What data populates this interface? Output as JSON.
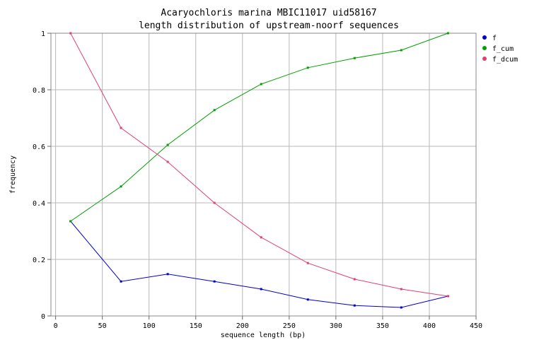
{
  "chart_data": {
    "type": "line",
    "title": "Acaryochloris marina MBIC11017 uid58167",
    "subtitle": "length distribution of upstream-noorf sequences",
    "xlabel": "sequence length (bp)",
    "ylabel": "frequency",
    "xlim": [
      -5,
      450
    ],
    "ylim": [
      0,
      1
    ],
    "x_ticks": [
      "0",
      "50",
      "100",
      "150",
      "200",
      "250",
      "300",
      "350",
      "400",
      "450"
    ],
    "y_ticks": [
      "0",
      "0.2",
      "0.4",
      "0.6",
      "0.8",
      "1"
    ],
    "grid": true,
    "legend_position": "top-right",
    "x": [
      16,
      70,
      120,
      170,
      220,
      270,
      320,
      370,
      420
    ],
    "series": [
      {
        "name": "f",
        "color": "#0000cc",
        "values": [
          0.335,
          0.122,
          0.148,
          0.122,
          0.095,
          0.058,
          0.037,
          0.03,
          0.07
        ]
      },
      {
        "name": "f_cum",
        "color": "#00a000",
        "values": [
          0.335,
          0.458,
          0.605,
          0.728,
          0.82,
          0.878,
          0.912,
          0.94,
          1.0
        ]
      },
      {
        "name": "f_dcum",
        "color": "#e04070",
        "values": [
          1.0,
          0.665,
          0.545,
          0.4,
          0.278,
          0.187,
          0.13,
          0.095,
          0.07
        ]
      }
    ]
  }
}
